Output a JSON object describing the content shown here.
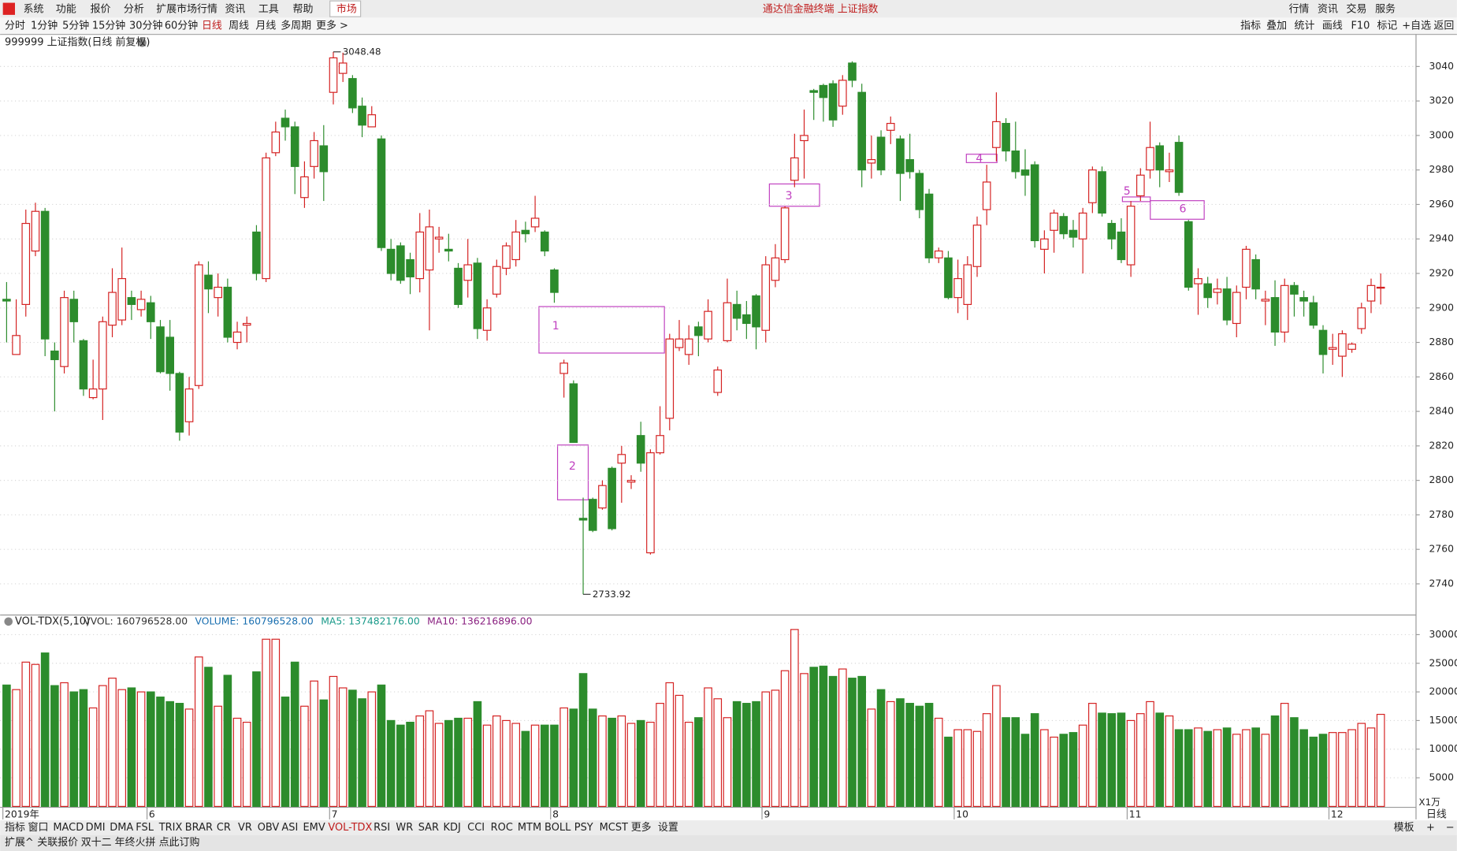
{
  "top_menu": [
    "系统",
    "功能",
    "报价",
    "分析",
    "扩展市场行情",
    "资讯",
    "工具",
    "帮助",
    "市场"
  ],
  "window_title": "通达信金融终端 上证指数",
  "top_right": [
    "行情",
    "资讯",
    "交易",
    "服务"
  ],
  "period_bar": [
    "分时",
    "1分钟",
    "5分钟",
    "15分钟",
    "30分钟",
    "60分钟",
    "日线",
    "周线",
    "月线",
    "多周期",
    "更多 >"
  ],
  "tool_bar": [
    "指标",
    "叠加",
    "统计",
    "画线",
    "F10",
    "标记",
    "+自选",
    "返回"
  ],
  "chart_data": [
    {
      "type": "candlestick",
      "title": "999999 上证指数(日线 前复权)",
      "categories": [
        "2019年",
        null,
        null,
        null,
        null,
        null,
        null,
        null,
        null,
        null,
        null,
        null,
        null,
        null,
        null,
        "6",
        null,
        null,
        null,
        null,
        null,
        null,
        null,
        null,
        null,
        null,
        null,
        null,
        null,
        null,
        null,
        null,
        null,
        null,
        "7",
        null,
        null,
        null,
        null,
        null,
        null,
        null,
        null,
        null,
        null,
        null,
        null,
        null,
        null,
        null,
        null,
        null,
        null,
        null,
        null,
        null,
        null,
        "8",
        null,
        null,
        null,
        null,
        null,
        null,
        null,
        null,
        null,
        null,
        null,
        null,
        null,
        null,
        null,
        null,
        null,
        null,
        null,
        null,
        null,
        "9",
        null,
        null,
        null,
        null,
        null,
        null,
        null,
        null,
        null,
        null,
        null,
        null,
        null,
        null,
        null,
        null,
        null,
        null,
        null,
        "10",
        null,
        null,
        null,
        null,
        null,
        null,
        null,
        null,
        null,
        null,
        null,
        null,
        null,
        null,
        null,
        null,
        null,
        "11",
        null,
        null,
        null,
        null,
        null,
        null,
        null,
        null,
        null,
        null,
        null,
        null,
        null,
        null,
        null,
        null,
        null,
        null,
        null,
        null,
        "12",
        null,
        null,
        null,
        null,
        null
      ],
      "candles": [
        [
          2905,
          2915,
          2880,
          2904
        ],
        [
          2873,
          2905,
          2873,
          2884
        ],
        [
          2902,
          2957,
          2895,
          2949
        ],
        [
          2933,
          2961,
          2930,
          2956
        ],
        [
          2956,
          2958,
          2872,
          2882
        ],
        [
          2875,
          2880,
          2840,
          2870
        ],
        [
          2866,
          2910,
          2862,
          2906
        ],
        [
          2905,
          2910,
          2880,
          2892
        ],
        [
          2881,
          2882,
          2849,
          2853
        ],
        [
          2848,
          2870,
          2847,
          2853
        ],
        [
          2853,
          2895,
          2835,
          2892
        ],
        [
          2890,
          2923,
          2883,
          2909
        ],
        [
          2893,
          2935,
          2890,
          2917
        ],
        [
          2906,
          2910,
          2893,
          2902
        ],
        [
          2899,
          2910,
          2895,
          2905
        ],
        [
          2903,
          2907,
          2882,
          2892
        ],
        [
          2889,
          2893,
          2862,
          2863
        ],
        [
          2883,
          2893,
          2852,
          2862
        ],
        [
          2862,
          2863,
          2823,
          2828
        ],
        [
          2834,
          2860,
          2826,
          2853
        ],
        [
          2855,
          2927,
          2853,
          2925
        ],
        [
          2919,
          2927,
          2897,
          2911
        ],
        [
          2906,
          2920,
          2895,
          2912
        ],
        [
          2912,
          2917,
          2880,
          2883
        ],
        [
          2880,
          2892,
          2876,
          2886
        ],
        [
          2890,
          2895,
          2880,
          2891
        ],
        [
          2944,
          2948,
          2916,
          2920
        ],
        [
          2917,
          2990,
          2915,
          2987
        ],
        [
          2990,
          3008,
          2988,
          3002
        ],
        [
          3010,
          3015,
          2997,
          3005
        ],
        [
          3005,
          3008,
          2966,
          2982
        ],
        [
          2964,
          2985,
          2958,
          2976
        ],
        [
          2982,
          3002,
          2975,
          2997
        ],
        [
          2994,
          3006,
          2962,
          2979
        ],
        [
          3025,
          3048.48,
          3018,
          3045
        ],
        [
          3036,
          3048,
          3031,
          3042
        ],
        [
          3033,
          3035,
          3013,
          3016
        ],
        [
          3017,
          3022,
          2999,
          3006
        ],
        [
          3005,
          3017,
          3005,
          3012
        ],
        [
          2998,
          3000,
          2933,
          2935
        ],
        [
          2934,
          2940,
          2916,
          2920
        ],
        [
          2936,
          2938,
          2914,
          2916
        ],
        [
          2928,
          2932,
          2908,
          2918
        ],
        [
          2917,
          2955,
          2909,
          2944
        ],
        [
          2922,
          2957,
          2887,
          2947
        ],
        [
          2940,
          2947,
          2932,
          2941
        ],
        [
          2934,
          2943,
          2927,
          2933
        ],
        [
          2923,
          2926,
          2900,
          2902
        ],
        [
          2916,
          2940,
          2906,
          2925
        ],
        [
          2926,
          2929,
          2882,
          2888
        ],
        [
          2887,
          2905,
          2881,
          2900
        ],
        [
          2908,
          2928,
          2906,
          2924
        ],
        [
          2923,
          2938,
          2919,
          2936
        ],
        [
          2928,
          2951,
          2924,
          2944
        ],
        [
          2945,
          2950,
          2938,
          2943
        ],
        [
          2947,
          2965,
          2944,
          2952
        ],
        [
          2944,
          2945,
          2930,
          2933
        ],
        [
          2922,
          2923,
          2903,
          2909
        ],
        [
          2862,
          2870,
          2848,
          2868
        ],
        [
          2856,
          2858,
          2822,
          2822
        ],
        [
          2778,
          2790,
          2733.92,
          2777
        ],
        [
          2789,
          2790,
          2770,
          2771
        ],
        [
          2784,
          2800,
          2783,
          2797
        ],
        [
          2807,
          2808,
          2771,
          2772
        ],
        [
          2810,
          2820,
          2787,
          2815
        ],
        [
          2799,
          2803,
          2795,
          2800
        ],
        [
          2826,
          2834,
          2805,
          2810
        ],
        [
          2758,
          2818,
          2757,
          2816
        ],
        [
          2816,
          2843,
          2815,
          2826
        ],
        [
          2836,
          2885,
          2829,
          2882
        ],
        [
          2877,
          2893,
          2875,
          2882
        ],
        [
          2873,
          2890,
          2867,
          2882
        ],
        [
          2889,
          2892,
          2872,
          2884
        ],
        [
          2882,
          2905,
          2880,
          2898
        ],
        [
          2851,
          2866,
          2849,
          2864
        ],
        [
          2881,
          2917,
          2880,
          2903
        ],
        [
          2902,
          2910,
          2887,
          2894
        ],
        [
          2896,
          2904,
          2882,
          2891
        ],
        [
          2907,
          2908,
          2876,
          2889
        ],
        [
          2887,
          2930,
          2880,
          2925
        ],
        [
          2916,
          2937,
          2912,
          2929
        ],
        [
          2928,
          2959,
          2926,
          2958
        ],
        [
          2974,
          3001,
          2970,
          2987
        ],
        [
          2997,
          3015,
          2975,
          3000
        ],
        [
          3026,
          3027,
          3009,
          3025
        ],
        [
          3029,
          3030,
          3008,
          3022
        ],
        [
          3030,
          3032,
          3005,
          3009
        ],
        [
          3017,
          3035,
          3012,
          3032
        ],
        [
          3042,
          3043,
          3028,
          3032
        ],
        [
          3025,
          3030,
          2970,
          2980
        ],
        [
          2984,
          3000,
          2975,
          2986
        ],
        [
          2999,
          3003,
          2977,
          2980
        ],
        [
          3003,
          3011,
          2995,
          3007
        ],
        [
          2998,
          3000,
          2962,
          2978
        ],
        [
          2986,
          3001,
          2975,
          2979
        ],
        [
          2978,
          2980,
          2952,
          2957
        ],
        [
          2966,
          2969,
          2926,
          2929
        ],
        [
          2929,
          2935,
          2926,
          2933
        ],
        [
          2929,
          2933,
          2905,
          2906
        ],
        [
          2906,
          2928,
          2897,
          2917
        ],
        [
          2902,
          2930,
          2893,
          2925
        ],
        [
          2924,
          2953,
          2918,
          2948
        ],
        [
          2957,
          2983,
          2948,
          2973
        ],
        [
          2993,
          3025,
          2985,
          3008
        ],
        [
          3007,
          3010,
          2985,
          2991
        ],
        [
          2991,
          3008,
          2975,
          2979
        ],
        [
          2980,
          2992,
          2965,
          2977
        ],
        [
          2983,
          2985,
          2935,
          2939
        ],
        [
          2934,
          2945,
          2920,
          2940
        ],
        [
          2945,
          2957,
          2932,
          2955
        ],
        [
          2953,
          2955,
          2940,
          2943
        ],
        [
          2945,
          2951,
          2935,
          2941
        ],
        [
          2940,
          2958,
          2920,
          2955
        ],
        [
          2961,
          2982,
          2955,
          2980
        ],
        [
          2979,
          2982,
          2953,
          2955
        ],
        [
          2949,
          2951,
          2934,
          2940
        ],
        [
          2944,
          2952,
          2926,
          2928
        ],
        [
          2925,
          2962,
          2918,
          2959
        ],
        [
          2965,
          2981,
          2962,
          2977
        ],
        [
          2980,
          3008,
          2975,
          2993
        ],
        [
          2994,
          2996,
          2970,
          2980
        ],
        [
          2979,
          2990,
          2973,
          2980
        ],
        [
          2996,
          3000,
          2965,
          2967
        ],
        [
          2950,
          2951,
          2910,
          2912
        ],
        [
          2914,
          2923,
          2896,
          2917
        ],
        [
          2914,
          2918,
          2900,
          2906
        ],
        [
          2909,
          2917,
          2902,
          2911
        ],
        [
          2911,
          2918,
          2890,
          2893
        ],
        [
          2891,
          2913,
          2883,
          2909
        ],
        [
          2912,
          2936,
          2905,
          2934
        ],
        [
          2928,
          2931,
          2905,
          2911
        ],
        [
          2904,
          2910,
          2890,
          2905
        ],
        [
          2906,
          2916,
          2878,
          2886
        ],
        [
          2886,
          2917,
          2880,
          2913
        ],
        [
          2913,
          2915,
          2895,
          2908
        ],
        [
          2906,
          2910,
          2895,
          2904
        ],
        [
          2903,
          2907,
          2888,
          2890
        ],
        [
          2887,
          2890,
          2862,
          2873
        ],
        [
          2876,
          2885,
          2867,
          2877
        ],
        [
          2872,
          2887,
          2860,
          2885
        ],
        [
          2876,
          2880,
          2874,
          2879
        ],
        [
          2888,
          2903,
          2885,
          2900
        ],
        [
          2904,
          2917,
          2897,
          2913
        ],
        [
          2912,
          2920,
          2902,
          2912
        ]
      ],
      "up_color": "#d42020",
      "down_color": "#2c8c2c",
      "ylim": [
        2723,
        3057
      ],
      "yticks": [
        2740,
        2760,
        2780,
        2800,
        2820,
        2840,
        2860,
        2880,
        2900,
        2920,
        2940,
        2960,
        2980,
        3000,
        3020,
        3040
      ],
      "grid": true,
      "annotations": [
        "1",
        "2",
        "3",
        "4",
        "5",
        "6"
      ]
    },
    {
      "type": "bar",
      "title": "VOL-TDX(5,10)",
      "legend": [
        {
          "text": "VVOL: 160796528.00",
          "color": "#333333"
        },
        {
          "text": "VOLUME: 160796528.00",
          "color": "#1a6fb0"
        },
        {
          "text": "MA5: 137482176.00",
          "color": "#1a9a8a"
        },
        {
          "text": "MA10: 136216896.00",
          "color": "#8a2080"
        }
      ],
      "values": [
        21200,
        20400,
        25200,
        24800,
        26800,
        21100,
        21600,
        20000,
        20400,
        17200,
        21100,
        22400,
        20400,
        20700,
        20000,
        20000,
        19100,
        18300,
        18000,
        17000,
        26100,
        24300,
        17500,
        22900,
        15400,
        14700,
        23500,
        29200,
        29200,
        19100,
        25200,
        17500,
        21900,
        18600,
        22700,
        20700,
        20300,
        18800,
        20000,
        21200,
        15000,
        14200,
        14700,
        15800,
        16700,
        14500,
        15000,
        15400,
        15400,
        18300,
        14200,
        15800,
        15000,
        14500,
        13100,
        14200,
        14200,
        14200,
        17200,
        17000,
        23200,
        17000,
        15800,
        15400,
        15800,
        14500,
        15000,
        14700,
        18000,
        21600,
        19400,
        14700,
        15500,
        20700,
        18800,
        15500,
        18300,
        18000,
        18300,
        20000,
        20300,
        23700,
        30900,
        23200,
        24300,
        24500,
        22700,
        24000,
        22400,
        22700,
        17000,
        20400,
        18300,
        18800,
        18000,
        17500,
        18000,
        15400,
        12100,
        13400,
        13400,
        13100,
        16200,
        21100,
        15500,
        15500,
        12600,
        16200,
        13400,
        12100,
        12600,
        12900,
        14200,
        18000,
        16300,
        16200,
        16300,
        15000,
        16200,
        18300,
        16300,
        15800,
        13400,
        13400,
        13700,
        13100,
        13400,
        13700,
        12600,
        13400,
        13700,
        12600,
        15800,
        18000,
        15500,
        13400,
        12100,
        12600,
        12900,
        12900,
        13400,
        14500,
        13700,
        16080
      ],
      "ylim": [
        0,
        32940
      ],
      "yticks": [
        5000,
        10000,
        15000,
        20000,
        25000,
        30000
      ],
      "grid": true,
      "unit_label": "X1万"
    }
  ],
  "indicator_tabs": [
    "指标",
    "窗口",
    "MACD",
    "DMI",
    "DMA",
    "FSL",
    "TRIX",
    "BRAR",
    "CR",
    "VR",
    "OBV",
    "ASI",
    "EMV",
    "VOL-TDX",
    "RSI",
    "WR",
    "SAR",
    "KDJ",
    "CCI",
    "ROC",
    "MTM",
    "BOLL",
    "PSY",
    "MCST",
    "更多",
    "设置"
  ],
  "template": "模板",
  "status_bar": [
    "扩展^",
    "关联报价",
    "双十二 年终火拼 点此订购"
  ],
  "bottom_right": [
    "日线",
    "+",
    "−"
  ]
}
